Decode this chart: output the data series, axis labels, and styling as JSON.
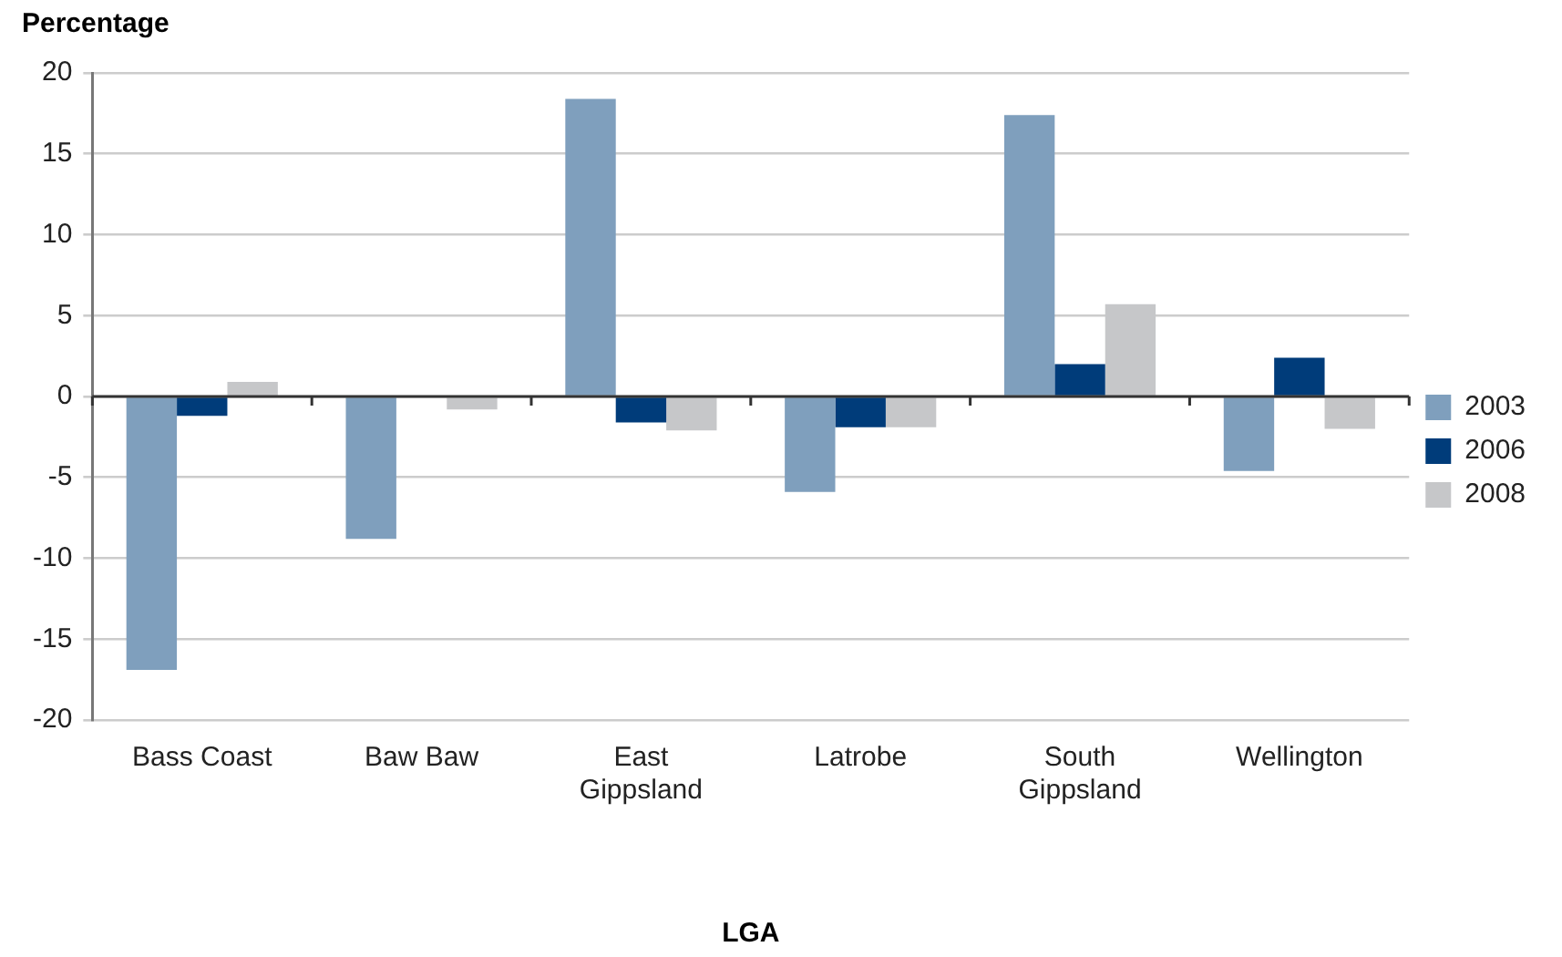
{
  "chart_data": {
    "type": "bar",
    "ylabel": "Percentage",
    "xlabel": "LGA",
    "categories": [
      "Bass Coast",
      "Baw Baw",
      "East Gippsland",
      "Latrobe",
      "South Gippsland",
      "Wellington"
    ],
    "series": [
      {
        "name": "2003",
        "color": "#7f9fbd",
        "values": [
          -16.9,
          -8.8,
          18.4,
          -5.9,
          17.4,
          -4.6
        ]
      },
      {
        "name": "2006",
        "color": "#003c7a",
        "values": [
          -1.2,
          0,
          -1.6,
          -1.9,
          2.0,
          2.4
        ]
      },
      {
        "name": "2008",
        "color": "#c6c7c9",
        "values": [
          0.9,
          -0.8,
          -2.1,
          -1.9,
          5.7,
          -2.0
        ]
      }
    ],
    "ylim": [
      -20,
      20
    ],
    "yticks": [
      -20,
      -15,
      -10,
      -5,
      0,
      5,
      10,
      15,
      20
    ],
    "grid": "y",
    "legend": "right"
  }
}
